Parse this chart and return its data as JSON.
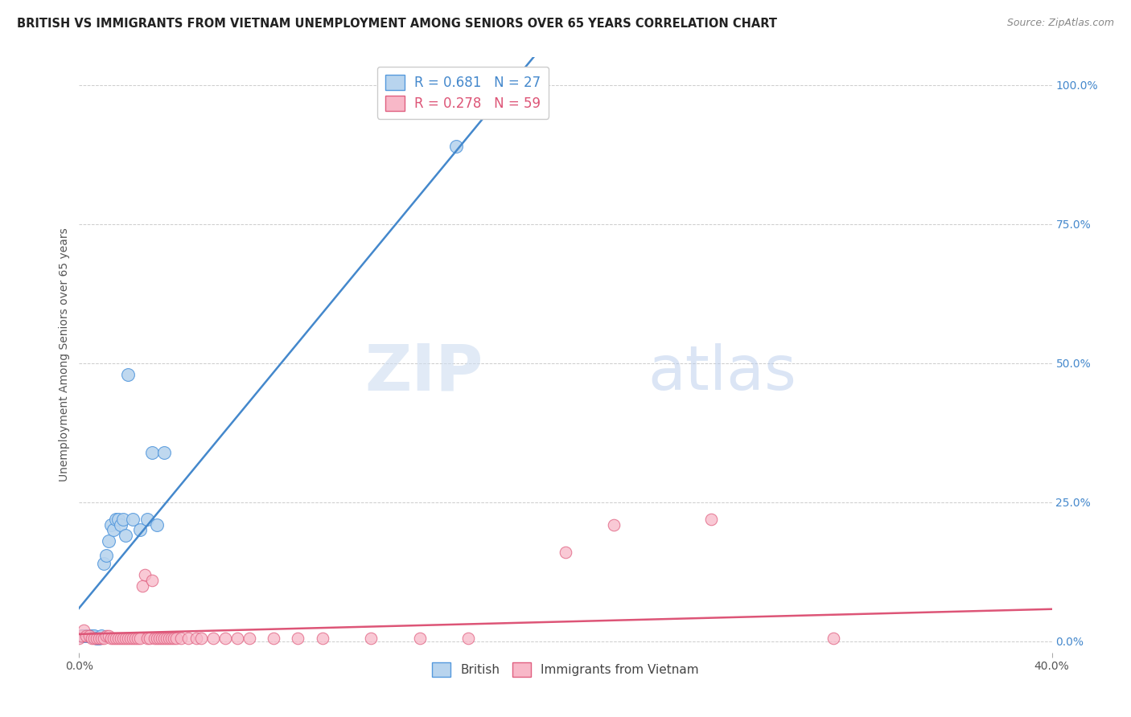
{
  "title": "BRITISH VS IMMIGRANTS FROM VIETNAM UNEMPLOYMENT AMONG SENIORS OVER 65 YEARS CORRELATION CHART",
  "source": "Source: ZipAtlas.com",
  "ylabel": "Unemployment Among Seniors over 65 years",
  "xlim": [
    0.0,
    0.4
  ],
  "ylim": [
    -0.02,
    1.05
  ],
  "right_yticks": [
    0.0,
    0.25,
    0.5,
    0.75,
    1.0
  ],
  "right_yticklabels": [
    "0.0%",
    "25.0%",
    "50.0%",
    "75.0%",
    "100.0%"
  ],
  "xticks": [
    0.0,
    0.4
  ],
  "xticklabels": [
    "0.0%",
    "40.0%"
  ],
  "british_fill_color": "#b8d4ee",
  "british_edge_color": "#5599dd",
  "vietnam_fill_color": "#f8b8c8",
  "vietnam_edge_color": "#e06080",
  "british_line_color": "#4488cc",
  "vietnam_line_color": "#dd5577",
  "legend_R_british": "R = 0.681",
  "legend_N_british": "N = 27",
  "legend_R_vietnam": "R = 0.278",
  "legend_N_vietnam": "N = 59",
  "watermark_zip": "ZIP",
  "watermark_atlas": "atlas",
  "british_x": [
    0.001,
    0.002,
    0.003,
    0.004,
    0.005,
    0.006,
    0.007,
    0.008,
    0.009,
    0.01,
    0.011,
    0.012,
    0.013,
    0.014,
    0.015,
    0.016,
    0.017,
    0.018,
    0.019,
    0.02,
    0.022,
    0.025,
    0.028,
    0.03,
    0.032,
    0.035,
    0.155
  ],
  "british_y": [
    0.01,
    0.01,
    0.01,
    0.01,
    0.01,
    0.01,
    0.005,
    0.005,
    0.01,
    0.14,
    0.155,
    0.18,
    0.21,
    0.2,
    0.22,
    0.22,
    0.21,
    0.22,
    0.19,
    0.48,
    0.22,
    0.2,
    0.22,
    0.34,
    0.21,
    0.34,
    0.89
  ],
  "vietnam_x": [
    0.0,
    0.001,
    0.002,
    0.003,
    0.004,
    0.005,
    0.006,
    0.007,
    0.008,
    0.009,
    0.01,
    0.011,
    0.012,
    0.013,
    0.014,
    0.015,
    0.016,
    0.017,
    0.018,
    0.019,
    0.02,
    0.021,
    0.022,
    0.023,
    0.024,
    0.025,
    0.026,
    0.027,
    0.028,
    0.029,
    0.03,
    0.031,
    0.032,
    0.033,
    0.034,
    0.035,
    0.036,
    0.037,
    0.038,
    0.039,
    0.04,
    0.042,
    0.045,
    0.048,
    0.05,
    0.055,
    0.06,
    0.065,
    0.07,
    0.08,
    0.09,
    0.1,
    0.12,
    0.14,
    0.16,
    0.2,
    0.22,
    0.26,
    0.31
  ],
  "vietnam_y": [
    0.005,
    0.01,
    0.02,
    0.01,
    0.01,
    0.005,
    0.005,
    0.005,
    0.005,
    0.005,
    0.005,
    0.01,
    0.01,
    0.005,
    0.005,
    0.005,
    0.005,
    0.005,
    0.005,
    0.005,
    0.005,
    0.005,
    0.005,
    0.005,
    0.005,
    0.005,
    0.1,
    0.12,
    0.005,
    0.005,
    0.11,
    0.005,
    0.005,
    0.005,
    0.005,
    0.005,
    0.005,
    0.005,
    0.005,
    0.005,
    0.005,
    0.005,
    0.005,
    0.005,
    0.005,
    0.005,
    0.005,
    0.005,
    0.005,
    0.005,
    0.005,
    0.005,
    0.005,
    0.005,
    0.005,
    0.16,
    0.21,
    0.22,
    0.005
  ],
  "blue_line_x": [
    -0.005,
    0.4
  ],
  "blue_line_y": [
    -0.14,
    2.86
  ],
  "pink_line_x": [
    0.0,
    0.4
  ],
  "pink_line_y": [
    0.012,
    0.055
  ]
}
